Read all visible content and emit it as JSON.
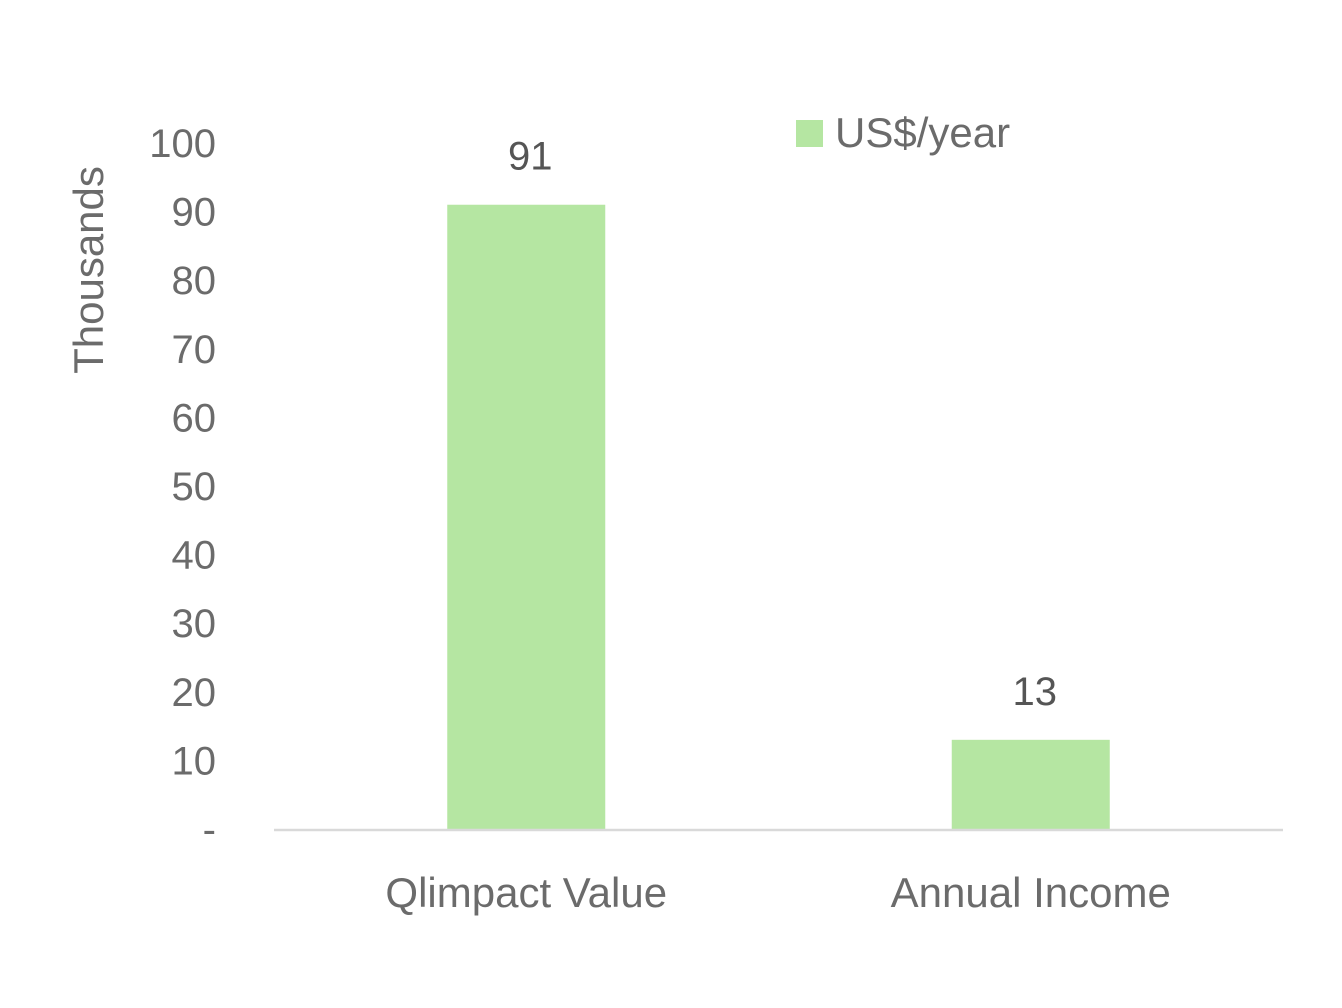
{
  "chart_data": {
    "type": "bar",
    "ylabel": "Thousands",
    "categories": [
      "Qlimpact Value",
      "Annual Income"
    ],
    "series": [
      {
        "name": "US$/year",
        "values": [
          91,
          13
        ],
        "data_labels": [
          "91",
          "13"
        ],
        "color": "#b5e6a2"
      }
    ],
    "y_ticks": [
      0,
      10,
      20,
      30,
      40,
      50,
      60,
      70,
      80,
      90,
      100
    ],
    "y_tick_labels": [
      "-",
      "10",
      "20",
      "30",
      "40",
      "50",
      "60",
      "70",
      "80",
      "90",
      "100"
    ],
    "ylim": [
      0,
      100
    ],
    "grid": false,
    "legend_position": "top-right",
    "colors": {
      "axis": "#d9d9d9",
      "text": "#6b6b6b"
    }
  }
}
